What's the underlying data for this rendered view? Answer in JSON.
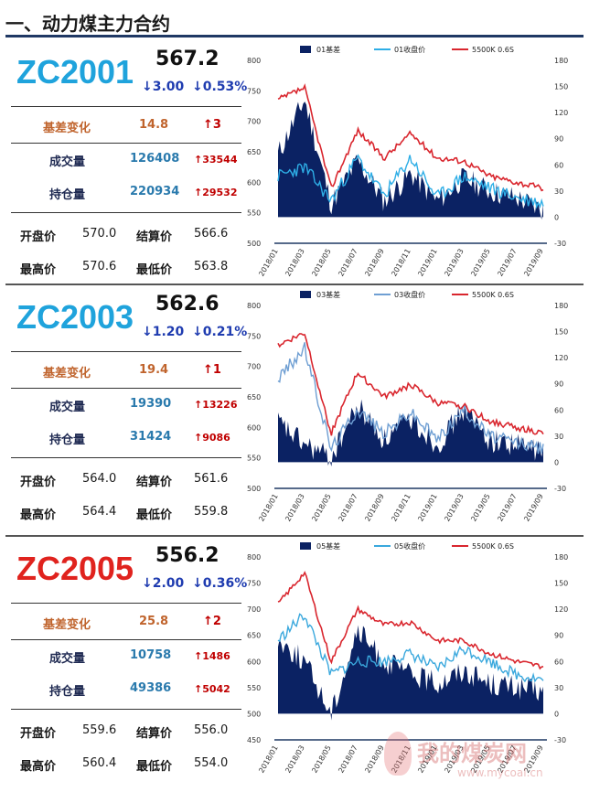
{
  "header": {
    "title": "一、动力煤主力合约"
  },
  "contracts": [
    {
      "code": "ZC2001",
      "code_color": "#1fa3dc",
      "price": "567.2",
      "chg": "↓3.00",
      "chg_pct": "↓0.53%",
      "basis_label": "基差变化",
      "basis_value": "14.8",
      "basis_arrow": "↑3",
      "volume_label": "成交量",
      "volume_value": "126408",
      "volume_chg": "↑33544",
      "oi_label": "持仓量",
      "oi_value": "220934",
      "oi_chg": "↑29532",
      "open_label": "开盘价",
      "open_value": "570.0",
      "settle_label": "结算价",
      "settle_value": "566.6",
      "high_label": "最高价",
      "high_value": "570.6",
      "low_label": "最低价",
      "low_value": "563.8"
    },
    {
      "code": "ZC2003",
      "code_color": "#1fa3dc",
      "price": "562.6",
      "chg": "↓1.20",
      "chg_pct": "↓0.21%",
      "basis_label": "基差变化",
      "basis_value": "19.4",
      "basis_arrow": "↑1",
      "volume_label": "成交量",
      "volume_value": "19390",
      "volume_chg": "↑13226",
      "oi_label": "持仓量",
      "oi_value": "31424",
      "oi_chg": "↑9086",
      "open_label": "开盘价",
      "open_value": "564.0",
      "settle_label": "结算价",
      "settle_value": "561.6",
      "high_label": "最高价",
      "high_value": "564.4",
      "low_label": "最低价",
      "low_value": "559.8"
    },
    {
      "code": "ZC2005",
      "code_color": "#e0231e",
      "price": "556.2",
      "chg": "↓2.00",
      "chg_pct": "↓0.36%",
      "basis_label": "基差变化",
      "basis_value": "25.8",
      "basis_arrow": "↑2",
      "volume_label": "成交量",
      "volume_value": "10758",
      "volume_chg": "↑1486",
      "oi_label": "持仓量",
      "oi_value": "49386",
      "oi_chg": "↑5042",
      "open_label": "开盘价",
      "open_value": "559.6",
      "settle_label": "结算价",
      "settle_value": "556.0",
      "high_label": "最高价",
      "high_value": "560.4",
      "low_label": "最低价",
      "low_value": "554.0"
    }
  ],
  "watermark": {
    "site": "我的煤炭网",
    "url": "www.mycoal.cn"
  },
  "colors": {
    "basis": "#0b2263",
    "close_01": "#2eaee6",
    "close_03": "#6f9fd3",
    "close_05": "#3aa8dd",
    "spot": "#d9262e"
  },
  "chart_data": [
    {
      "type": "area",
      "x": [
        "2018/01",
        "2018/03",
        "2018/05",
        "2018/07",
        "2018/09",
        "2018/11",
        "2019/01",
        "2019/03",
        "2019/05",
        "2019/07",
        "2019/09"
      ],
      "series": [
        {
          "name": "01基差",
          "axis": "right",
          "values": [
            72,
            135,
            15,
            65,
            18,
            50,
            18,
            45,
            30,
            22,
            8
          ]
        },
        {
          "name": "01收盘价",
          "axis": "left",
          "values": [
            610,
            625,
            570,
            640,
            578,
            640,
            575,
            610,
            590,
            575,
            565
          ]
        },
        {
          "name": "5500K 0.6S",
          "axis": "left",
          "values": [
            735,
            755,
            590,
            685,
            640,
            680,
            640,
            635,
            610,
            600,
            590
          ]
        }
      ],
      "ylim_left": [
        500,
        800
      ],
      "yticks_left": [
        500,
        550,
        600,
        650,
        700,
        750,
        800
      ],
      "ylim_right": [
        -30,
        180
      ],
      "yticks_right": [
        -30,
        0,
        30,
        60,
        90,
        120,
        150,
        180
      ],
      "legend": "top"
    },
    {
      "type": "area",
      "x": [
        "2018/01",
        "2018/03",
        "2018/05",
        "2018/07",
        "2018/09",
        "2018/11",
        "2019/01",
        "2019/03",
        "2019/05",
        "2019/07",
        "2019/09"
      ],
      "series": [
        {
          "name": "03基差",
          "axis": "right",
          "values": [
            45,
            20,
            5,
            65,
            25,
            50,
            20,
            60,
            25,
            20,
            12
          ]
        },
        {
          "name": "03收盘价",
          "axis": "left",
          "values": [
            680,
            730,
            565,
            630,
            590,
            625,
            580,
            630,
            585,
            575,
            565
          ]
        },
        {
          "name": "5500K 0.6S",
          "axis": "left",
          "values": [
            735,
            755,
            590,
            690,
            650,
            670,
            640,
            635,
            610,
            600,
            590
          ]
        }
      ],
      "ylim_left": [
        500,
        800
      ],
      "yticks_left": [
        500,
        550,
        600,
        650,
        700,
        750,
        800
      ],
      "ylim_right": [
        -30,
        180
      ],
      "yticks_right": [
        -30,
        0,
        30,
        60,
        90,
        120,
        150,
        180
      ],
      "legend": "top"
    },
    {
      "type": "area",
      "x": [
        "2018/01",
        "2018/03",
        "2018/05",
        "2018/07",
        "2018/09",
        "2018/11",
        "2019/01",
        "2019/03",
        "2019/05",
        "2019/07",
        "2019/09"
      ],
      "series": [
        {
          "name": "05基差",
          "axis": "right",
          "values": [
            85,
            60,
            0,
            95,
            60,
            45,
            35,
            50,
            35,
            30,
            25
          ]
        },
        {
          "name": "05收盘价",
          "axis": "left",
          "values": [
            640,
            690,
            575,
            600,
            600,
            615,
            585,
            625,
            600,
            575,
            565
          ]
        },
        {
          "name": "5500K 0.6S",
          "axis": "left",
          "values": [
            710,
            770,
            600,
            700,
            670,
            675,
            640,
            640,
            615,
            600,
            590
          ]
        }
      ],
      "ylim_left": [
        450,
        800
      ],
      "yticks_left": [
        450,
        500,
        550,
        600,
        650,
        700,
        750,
        800
      ],
      "ylim_right": [
        -30,
        180
      ],
      "yticks_right": [
        -30,
        0,
        30,
        60,
        90,
        120,
        150,
        180
      ],
      "legend": "top"
    }
  ]
}
